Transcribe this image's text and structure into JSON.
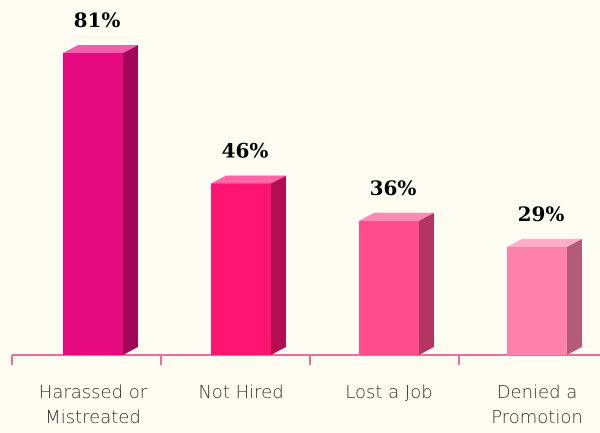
{
  "chart_data": {
    "type": "bar3d",
    "categories": [
      [
        "Harassed or",
        "Mistreated"
      ],
      [
        "Not Hired"
      ],
      [
        "Lost a Job"
      ],
      [
        "Denied a",
        "Promotion"
      ]
    ],
    "values": [
      81,
      46,
      36,
      29
    ],
    "value_labels": [
      "81%",
      "46%",
      "36%",
      "29%"
    ],
    "colors": [
      "#e6097e",
      "#ff1472",
      "#ff4d8c",
      "#ff82ac"
    ]
  }
}
